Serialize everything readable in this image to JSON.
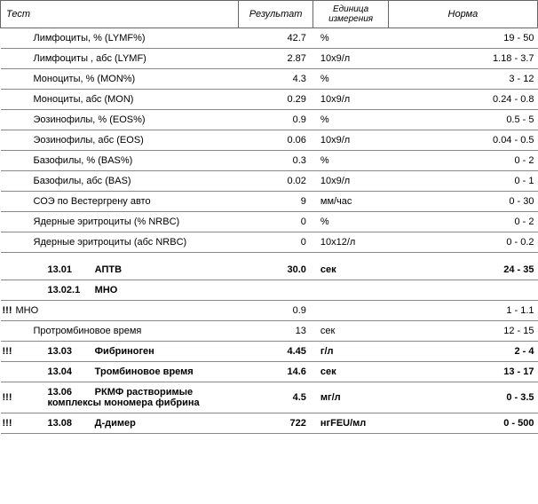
{
  "headers": {
    "test": "Тест",
    "result": "Результат",
    "unit": "Единица измерения",
    "norm": "Норма"
  },
  "rows": [
    {
      "marker": "",
      "name": "Лимфоциты, % (LYMF%)",
      "result": "42.7",
      "unit": "%",
      "norm": "19 - 50",
      "bold": false,
      "section": false
    },
    {
      "marker": "",
      "name": "Лимфоциты , абс (LYMF)",
      "result": "2.87",
      "unit": "10x9/л",
      "norm": "1.18 - 3.7",
      "bold": false,
      "section": false
    },
    {
      "marker": "",
      "name": "Моноциты, % (MON%)",
      "result": "4.3",
      "unit": "%",
      "norm": "3 - 12",
      "bold": false,
      "section": false
    },
    {
      "marker": "",
      "name": "Моноциты, абс (MON)",
      "result": "0.29",
      "unit": "10x9/л",
      "norm": "0.24 - 0.8",
      "bold": false,
      "section": false
    },
    {
      "marker": "",
      "name": "Эозинофилы, % (EOS%)",
      "result": "0.9",
      "unit": "%",
      "norm": "0.5 - 5",
      "bold": false,
      "section": false
    },
    {
      "marker": "",
      "name": "Эозинофилы, абс (EOS)",
      "result": "0.06",
      "unit": "10x9/л",
      "norm": "0.04 - 0.5",
      "bold": false,
      "section": false
    },
    {
      "marker": "",
      "name": "Базофилы, % (BAS%)",
      "result": "0.3",
      "unit": "%",
      "norm": "0 - 2",
      "bold": false,
      "section": false
    },
    {
      "marker": "",
      "name": "Базофилы, абс (BAS)",
      "result": "0.02",
      "unit": "10x9/л",
      "norm": "0 - 1",
      "bold": false,
      "section": false
    },
    {
      "marker": "",
      "name": "СОЭ по Вестергрену авто",
      "result": "9",
      "unit": "мм/час",
      "norm": "0 - 30",
      "bold": false,
      "section": false
    },
    {
      "marker": "",
      "name": "Ядерные эритроциты (% NRBC)",
      "result": "0",
      "unit": "%",
      "norm": "0 - 2",
      "bold": false,
      "section": false
    },
    {
      "marker": "",
      "name": "Ядерные эритроциты (абс NRBC)",
      "result": "0",
      "unit": "10x12/л",
      "norm": "0 - 0.2",
      "bold": false,
      "section": false
    }
  ],
  "section2": [
    {
      "marker": "",
      "code": "13.01",
      "name": "АПТВ",
      "result": "30.0",
      "unit": "сек",
      "norm": "24 - 35",
      "bold": true,
      "section": true
    },
    {
      "marker": "",
      "code": "13.02.1",
      "name": "МНО",
      "result": "",
      "unit": "",
      "norm": "",
      "bold": true,
      "section": true
    },
    {
      "marker": "!!!",
      "code": "",
      "name": "МНО",
      "result": "0.9",
      "unit": "",
      "norm": "1 - 1.1",
      "bold": false,
      "section": false,
      "noindent": true
    },
    {
      "marker": "",
      "code": "",
      "name": "Протромбиновое время",
      "result": "13",
      "unit": "сек",
      "norm": "12 - 15",
      "bold": false,
      "section": false
    },
    {
      "marker": "!!!",
      "code": "13.03",
      "name": "Фибриноген",
      "result": "4.45",
      "unit": "г/л",
      "norm": "2 - 4",
      "bold": true,
      "section": true
    },
    {
      "marker": "",
      "code": "13.04",
      "name": "Тромбиновое время",
      "result": "14.6",
      "unit": "сек",
      "norm": "13 - 17",
      "bold": true,
      "section": true
    },
    {
      "marker": "!!!",
      "code": "13.06",
      "name": "РКМФ растворимые комплексы мономера фибрина",
      "result": "4.5",
      "unit": "мг/л",
      "norm": "0 - 3.5",
      "bold": true,
      "section": true
    },
    {
      "marker": "!!!",
      "code": "13.08",
      "name": "Д-димер",
      "result": "722",
      "unit": "нгFEU/мл",
      "norm": "0 - 500",
      "bold": true,
      "section": true
    }
  ]
}
